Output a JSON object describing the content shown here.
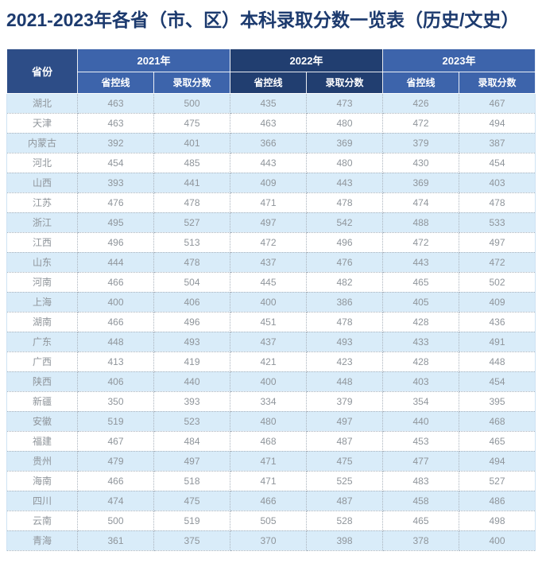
{
  "page": {
    "title": "2021-2023年各省（市、区）本科录取分数一览表（历史/文史）"
  },
  "colors": {
    "title_text": "#1c3a6e",
    "header_province": "#2d4d87",
    "year_light": "#3d64ab",
    "year_dark": "#213e70",
    "row_alt": "#d9ecf9",
    "row_plain": "#ffffff",
    "cell_text": "#8f959b",
    "border_dot": "#aab3bd",
    "table_edge": "#cfe3f3"
  },
  "table": {
    "province_header": "省份",
    "year_groups": [
      {
        "label": "2021年",
        "theme": "light",
        "columns": [
          "省控线",
          "录取分数"
        ]
      },
      {
        "label": "2022年",
        "theme": "dark",
        "columns": [
          "省控线",
          "录取分数"
        ]
      },
      {
        "label": "2023年",
        "theme": "light",
        "columns": [
          "省控线",
          "录取分数"
        ]
      }
    ]
  },
  "chart_data": {
    "type": "table",
    "title": "2021-2023年各省（市、区）本科录取分数一览表（历史/文史）",
    "columns": [
      "省份",
      "2021年省控线",
      "2021年录取分数",
      "2022年省控线",
      "2022年录取分数",
      "2023年省控线",
      "2023年录取分数"
    ],
    "rows": [
      [
        "湖北",
        463,
        500,
        435,
        473,
        426,
        467
      ],
      [
        "天津",
        463,
        475,
        463,
        480,
        472,
        494
      ],
      [
        "内蒙古",
        392,
        401,
        366,
        369,
        379,
        387
      ],
      [
        "河北",
        454,
        485,
        443,
        480,
        430,
        454
      ],
      [
        "山西",
        393,
        441,
        409,
        443,
        369,
        403
      ],
      [
        "江苏",
        476,
        478,
        471,
        478,
        474,
        478
      ],
      [
        "浙江",
        495,
        527,
        497,
        542,
        488,
        533
      ],
      [
        "江西",
        496,
        513,
        472,
        496,
        472,
        497
      ],
      [
        "山东",
        444,
        478,
        437,
        476,
        443,
        472
      ],
      [
        "河南",
        466,
        504,
        445,
        482,
        465,
        502
      ],
      [
        "上海",
        400,
        406,
        400,
        386,
        405,
        409
      ],
      [
        "湖南",
        466,
        496,
        451,
        478,
        428,
        436
      ],
      [
        "广东",
        448,
        493,
        437,
        493,
        433,
        491
      ],
      [
        "广西",
        413,
        419,
        421,
        423,
        428,
        448
      ],
      [
        "陕西",
        406,
        440,
        400,
        448,
        403,
        454
      ],
      [
        "新疆",
        350,
        393,
        334,
        379,
        354,
        395
      ],
      [
        "安徽",
        519,
        523,
        480,
        497,
        440,
        468
      ],
      [
        "福建",
        467,
        484,
        468,
        487,
        453,
        465
      ],
      [
        "贵州",
        479,
        497,
        471,
        475,
        477,
        494
      ],
      [
        "海南",
        466,
        518,
        471,
        525,
        483,
        527
      ],
      [
        "四川",
        474,
        475,
        466,
        487,
        458,
        486
      ],
      [
        "云南",
        500,
        519,
        505,
        528,
        465,
        498
      ],
      [
        "青海",
        361,
        375,
        370,
        398,
        378,
        400
      ]
    ]
  }
}
